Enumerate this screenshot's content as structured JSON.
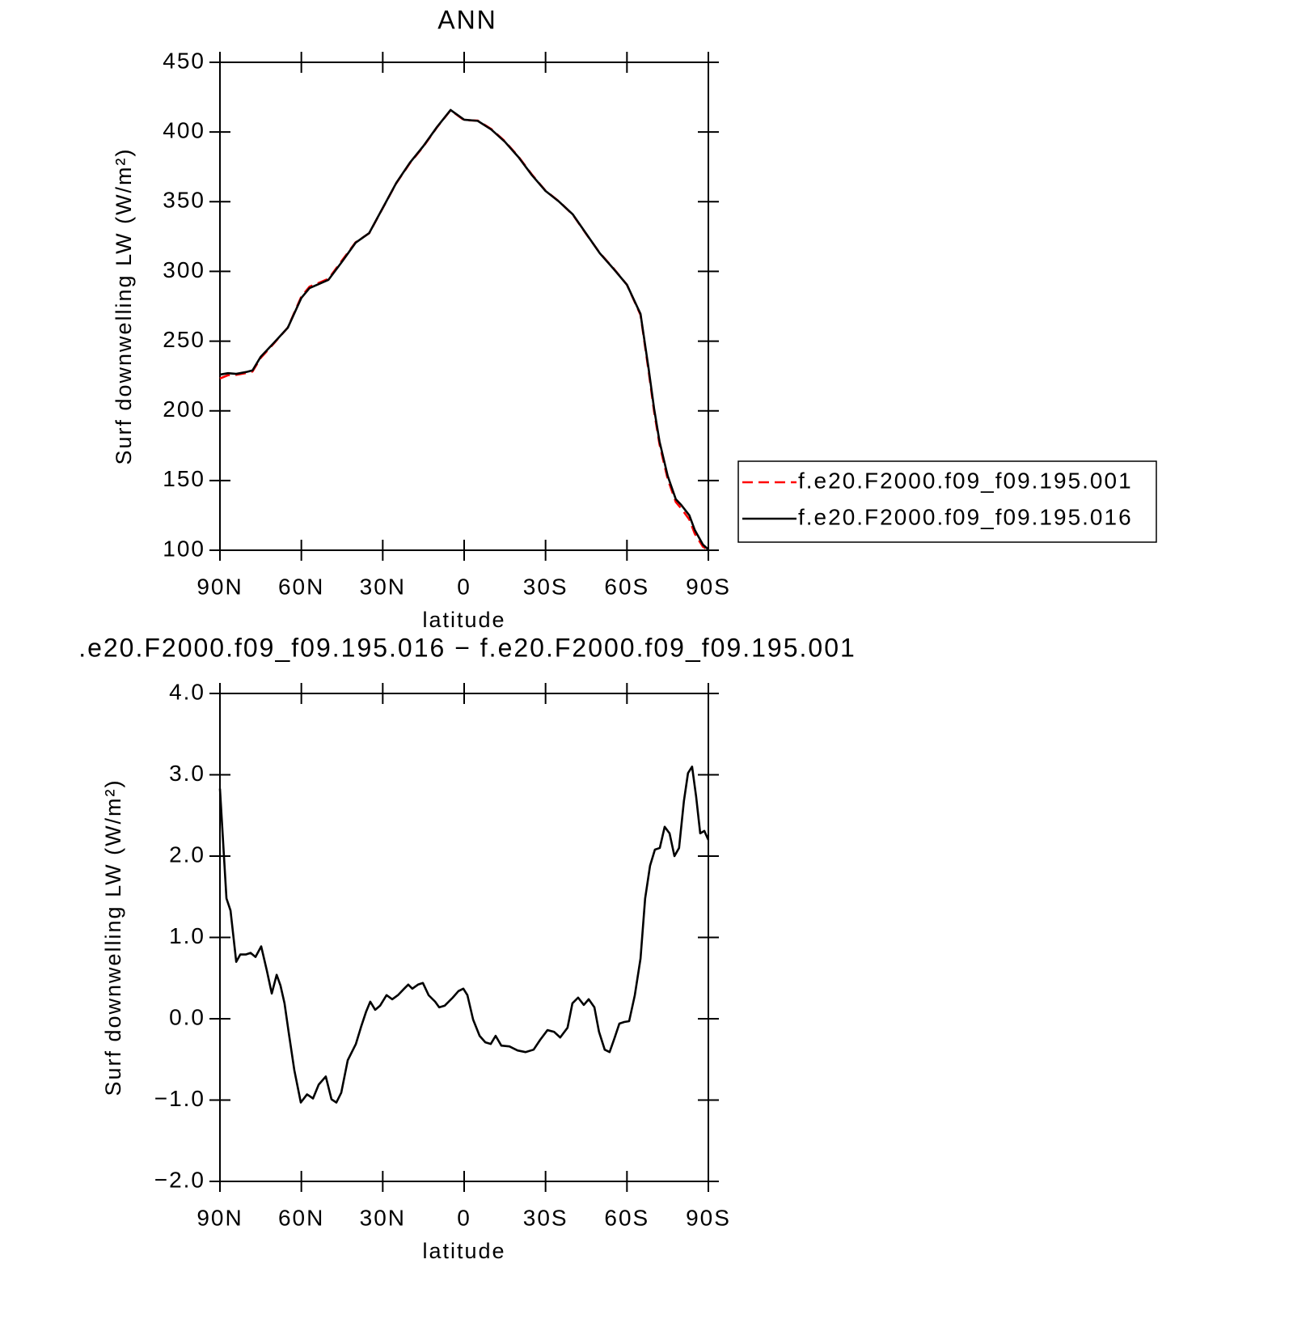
{
  "chart_data": [
    {
      "type": "line",
      "title": "ANN",
      "x_label": "latitude",
      "y_label": "Surf downwelling LW (W/m²)",
      "x": [
        90,
        87,
        84,
        80,
        78,
        75,
        70,
        65,
        60,
        57,
        50,
        45,
        40,
        35,
        30,
        25,
        20,
        15,
        10,
        5,
        0,
        -5,
        -10,
        -15,
        -20,
        -25,
        -30,
        -35,
        -40,
        -45,
        -50,
        -55,
        -60,
        -65,
        -68,
        -70,
        -72,
        -75,
        -78,
        -80,
        -83,
        -85,
        -88,
        -90
      ],
      "xlim": [
        90,
        -90
      ],
      "xticks": [
        {
          "value": 90,
          "label": "90N"
        },
        {
          "value": 60,
          "label": "60N"
        },
        {
          "value": 30,
          "label": "30N"
        },
        0,
        {
          "value": -30,
          "label": "30S"
        },
        {
          "value": -60,
          "label": "60S"
        },
        {
          "value": -90,
          "label": "90S"
        }
      ],
      "ylim": [
        100,
        450
      ],
      "yticks": [
        100,
        150,
        200,
        250,
        300,
        350,
        400,
        450
      ],
      "legend": "right",
      "series": [
        {
          "name": "f.e20.F2000.f09_f09.195.001",
          "color": "#ff0000",
          "dash": "dashed",
          "values": [
            223.2,
            225.6,
            225.8,
            227.2,
            228.2,
            237.9,
            248.6,
            259.7,
            282,
            289,
            294.7,
            307.9,
            320.9,
            327.4,
            345.4,
            363.3,
            377.6,
            389.6,
            403.4,
            415.6,
            408.5,
            408.2,
            402.1,
            393.4,
            382.4,
            369.4,
            357.9,
            350.2,
            340.8,
            326.8,
            313.2,
            302.3,
            290.4,
            268.8,
            228.1,
            199.5,
            175.9,
            151.1,
            134.6,
            130,
            122,
            111.8,
            102.5,
            100.2
          ]
        },
        {
          "name": "f.e20.F2000.f09_f09.195.016",
          "color": "#000000",
          "dash": "solid",
          "values": [
            226,
            227,
            226.5,
            228,
            229,
            238.7,
            249,
            259.6,
            281,
            288,
            294,
            307,
            320.6,
            327.5,
            345.5,
            363.5,
            378,
            390,
            403.6,
            415.8,
            408.8,
            408,
            401.8,
            393,
            382,
            369,
            357.7,
            350,
            341,
            327,
            313,
            302,
            290.4,
            269.5,
            230,
            201.6,
            178,
            153.4,
            136.6,
            132.5,
            125,
            114.5,
            104,
            100.6
          ]
        }
      ]
    },
    {
      "type": "line",
      "title": ".e20.F2000.f09_f09.195.016 − f.e20.F2000.f09_f09.195.001",
      "x_label": "latitude",
      "y_label": "Surf downwelling LW (W/m²)",
      "x": [
        90,
        87.6,
        86.1,
        84,
        82.5,
        80.5,
        78.7,
        76.9,
        74.8,
        72.7,
        70.9,
        69.1,
        67.7,
        66.2,
        64.7,
        62.6,
        60.2,
        57.9,
        55.7,
        53.6,
        51,
        48.9,
        47.1,
        45.3,
        42.9,
        39.9,
        37.9,
        36.1,
        34.6,
        32.8,
        31,
        28.6,
        26.5,
        24.4,
        22.1,
        20.6,
        19.1,
        17,
        15.2,
        13.1,
        10.7,
        9.2,
        7.2,
        4.2,
        2.1,
        0.3,
        -1.2,
        -3.3,
        -5.7,
        -7.8,
        -9.8,
        -11.6,
        -13.7,
        -16.7,
        -19.7,
        -22.6,
        -25.6,
        -28,
        -30.7,
        -33.1,
        -35.4,
        -38.1,
        -39.9,
        -42,
        -44.1,
        -45.9,
        -48,
        -49.7,
        -51.8,
        -53.6,
        -55.4,
        -57.2,
        -59,
        -60.8,
        -62.9,
        -65,
        -66.7,
        -68.5,
        -70.3,
        -72.1,
        -73.9,
        -75.7,
        -77.5,
        -79.2,
        -81,
        -82.5,
        -84,
        -85.5,
        -87,
        -88.5,
        -90
      ],
      "values": [
        2.83,
        1.48,
        1.33,
        0.7,
        0.79,
        0.79,
        0.81,
        0.76,
        0.89,
        0.59,
        0.31,
        0.54,
        0.41,
        0.19,
        -0.16,
        -0.63,
        -1.03,
        -0.93,
        -0.98,
        -0.81,
        -0.71,
        -0.99,
        -1.03,
        -0.91,
        -0.51,
        -0.31,
        -0.09,
        0.09,
        0.21,
        0.11,
        0.16,
        0.29,
        0.24,
        0.29,
        0.37,
        0.42,
        0.37,
        0.42,
        0.44,
        0.29,
        0.21,
        0.14,
        0.16,
        0.26,
        0.34,
        0.37,
        0.29,
        -0.01,
        -0.21,
        -0.29,
        -0.31,
        -0.21,
        -0.33,
        -0.34,
        -0.39,
        -0.41,
        -0.38,
        -0.26,
        -0.14,
        -0.16,
        -0.23,
        -0.11,
        0.19,
        0.26,
        0.17,
        0.24,
        0.14,
        -0.16,
        -0.38,
        -0.41,
        -0.24,
        -0.06,
        -0.04,
        -0.03,
        0.29,
        0.74,
        1.48,
        1.88,
        2.08,
        2.1,
        2.36,
        2.28,
        2.0,
        2.1,
        2.68,
        3.02,
        3.1,
        2.73,
        2.28,
        2.31,
        2.2
      ],
      "color": "#000000",
      "xlim": [
        90,
        -90
      ],
      "xticks": [
        {
          "value": 90,
          "label": "90N"
        },
        {
          "value": 60,
          "label": "60N"
        },
        {
          "value": 30,
          "label": "30N"
        },
        0,
        {
          "value": -30,
          "label": "30S"
        },
        {
          "value": -60,
          "label": "60S"
        },
        {
          "value": -90,
          "label": "90S"
        }
      ],
      "ylim": [
        -2,
        4
      ],
      "yticks": [
        {
          "value": -2,
          "label": "−2.0"
        },
        {
          "value": -1,
          "label": "−1.0"
        },
        {
          "value": 0,
          "label": "0.0"
        },
        {
          "value": 1,
          "label": "1.0"
        },
        {
          "value": 2,
          "label": "2.0"
        },
        {
          "value": 3,
          "label": "3.0"
        },
        {
          "value": 4,
          "label": "4.0"
        }
      ]
    }
  ]
}
